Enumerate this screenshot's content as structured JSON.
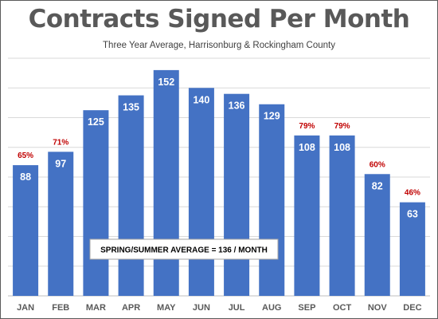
{
  "chart_data": {
    "type": "bar",
    "title": "Contracts Signed Per Month",
    "subtitle": "Three Year Average, Harrisonburg & Rockingham County",
    "categories": [
      "JAN",
      "FEB",
      "MAR",
      "APR",
      "MAY",
      "JUN",
      "JUL",
      "AUG",
      "SEP",
      "OCT",
      "NOV",
      "DEC"
    ],
    "values": [
      88,
      97,
      125,
      135,
      152,
      140,
      136,
      129,
      108,
      108,
      82,
      63
    ],
    "percent_labels": [
      "65%",
      "71%",
      "",
      "",
      "",
      "",
      "",
      "",
      "79%",
      "79%",
      "60%",
      "46%"
    ],
    "annotation": "SPRING/SUMMER AVERAGE = 136 / MONTH",
    "xlabel": "",
    "ylabel": "",
    "ylim": [
      0,
      160
    ],
    "grid": true,
    "legend": "none",
    "colors": {
      "bar": "#4472C4",
      "bar_label": "#ffffff",
      "percent_label": "#C00000",
      "gridline": "#D9D9D9",
      "axis_label": "#595959"
    }
  }
}
